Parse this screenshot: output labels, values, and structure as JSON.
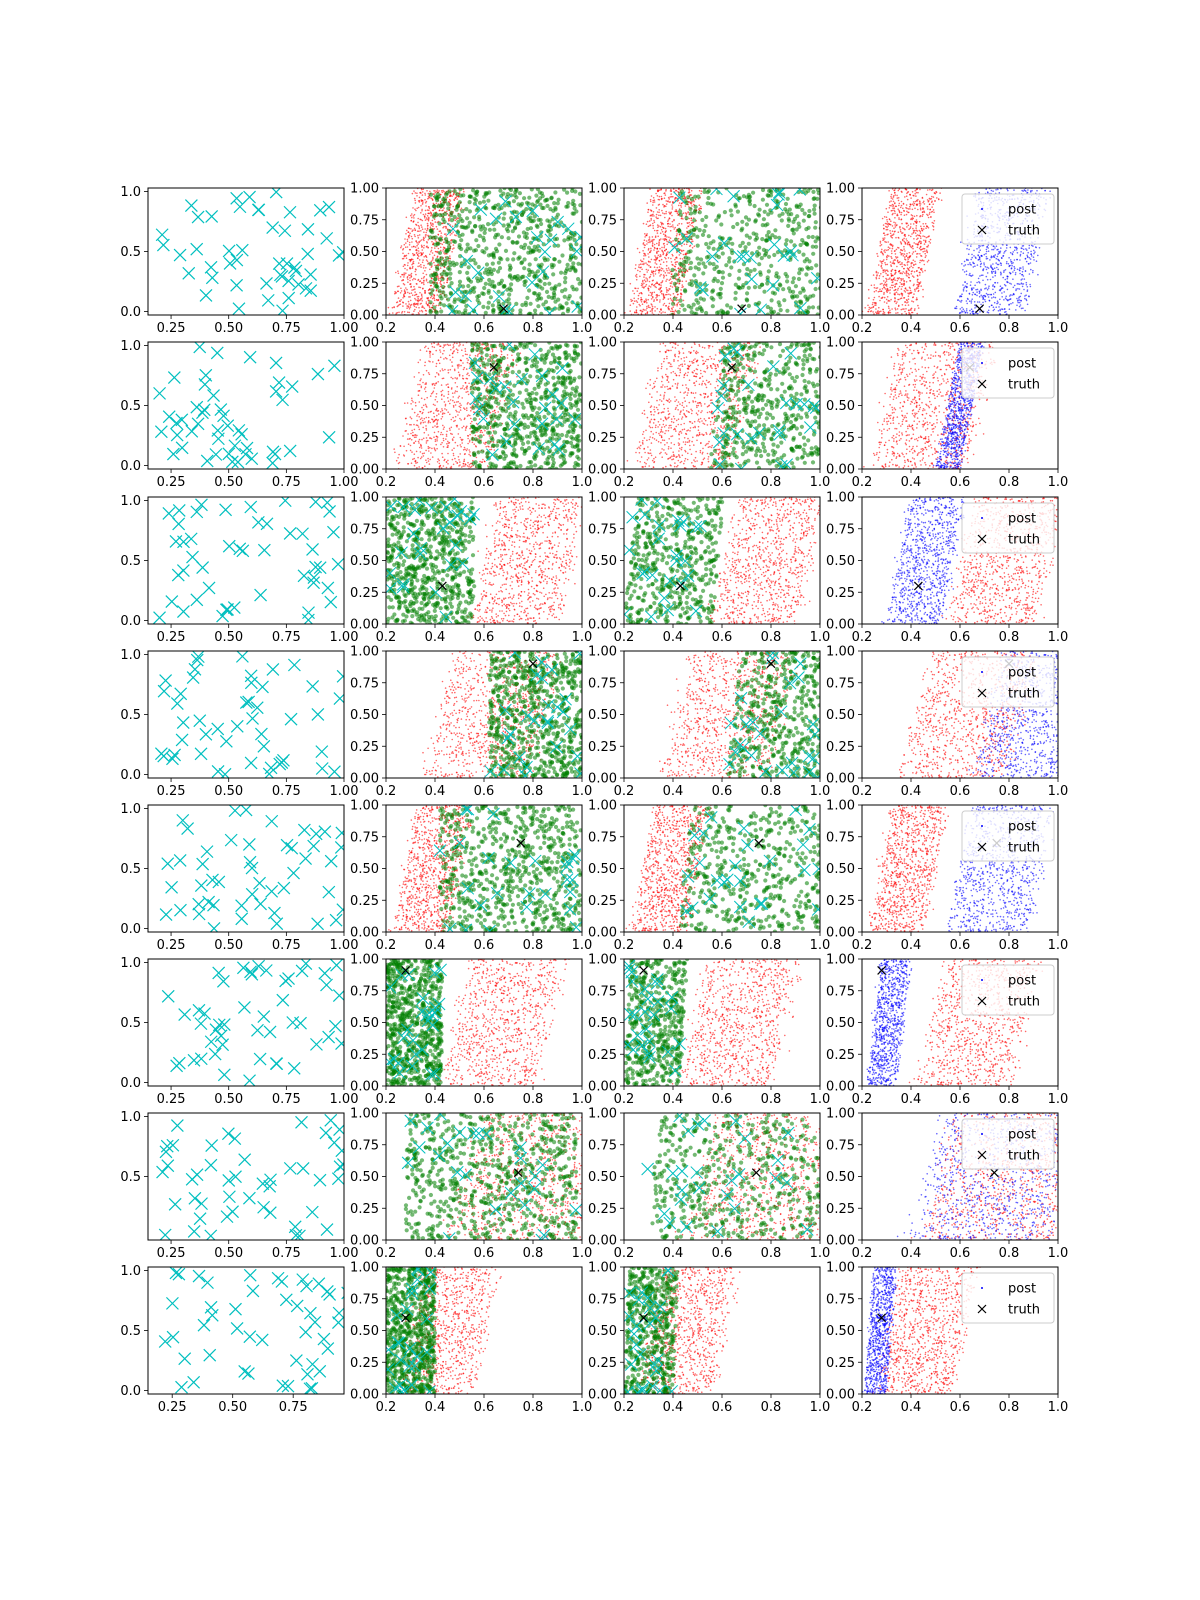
{
  "figure": {
    "rows": 8,
    "cols": 4,
    "colors": {
      "cross": "#00bfbf",
      "prior": "#ff0000",
      "green": "#008000",
      "post": "#0000ff",
      "truth": "#000000"
    }
  },
  "chart_data": {
    "type": "scatter",
    "grid": false,
    "legend_location": "upper right",
    "legend": [
      {
        "name": "post",
        "marker": "dot"
      },
      {
        "name": "truth",
        "marker": "x"
      }
    ],
    "axes": {
      "col0": {
        "xlim": [
          0.15,
          1.0
        ],
        "ylim": [
          -0.03,
          1.03
        ],
        "xticks": [
          "0.25",
          "0.50",
          "0.75",
          "1.00"
        ],
        "yticks": [
          "0.0",
          "0.5",
          "1.0"
        ]
      },
      "col0_row6": {
        "xlim": [
          0.15,
          1.0
        ],
        "ylim": [
          -0.03,
          1.03
        ],
        "xticks": [
          "0.25",
          "0.50",
          "0.75",
          "1.00"
        ],
        "yticks": [
          "0.5",
          "1.0"
        ]
      },
      "col0_row7": {
        "xlim": [
          0.15,
          0.96
        ],
        "ylim": [
          -0.03,
          1.03
        ],
        "xticks": [
          "0.25",
          "0.50",
          "0.75"
        ],
        "yticks": [
          "0.0",
          "0.5",
          "1.0"
        ]
      },
      "cols1to3": {
        "xlim": [
          0.2,
          1.0
        ],
        "ylim": [
          0.0,
          1.0
        ],
        "xticks": [
          "0.2",
          "0.4",
          "0.6",
          "0.8",
          "1.0"
        ],
        "yticks": [
          "0.00",
          "0.25",
          "0.50",
          "0.75",
          "1.00"
        ]
      }
    },
    "truth": [
      [
        0.68,
        0.05
      ],
      [
        0.64,
        0.8
      ],
      [
        0.43,
        0.3
      ],
      [
        0.8,
        0.9
      ],
      [
        0.75,
        0.7
      ],
      [
        0.28,
        0.91
      ],
      [
        0.74,
        0.53
      ],
      [
        0.28,
        0.6
      ]
    ],
    "rows": [
      {
        "red": {
          "x0": 0.22,
          "x1": 0.42,
          "slope": 0.1
        },
        "blue": {
          "x0": 0.58,
          "x1": 0.86,
          "slope": 0.1
        },
        "green_band": [
          0.38,
          1.0
        ],
        "post_truth_cols": [
          false,
          true,
          true
        ]
      },
      {
        "red": {
          "x0": 0.24,
          "x1": 0.62,
          "slope": 0.12
        },
        "blue": {
          "x0": 0.5,
          "x1": 0.6,
          "slope": 0.1
        },
        "green_band": [
          0.55,
          1.0
        ]
      },
      {
        "red": {
          "x0": 0.55,
          "x1": 0.9,
          "slope": 0.12
        },
        "blue": {
          "x0": 0.3,
          "x1": 0.52,
          "slope": 0.1
        },
        "green_band": [
          0.2,
          0.56
        ]
      },
      {
        "red": {
          "x0": 0.35,
          "x1": 0.78,
          "slope": 0.14
        },
        "blue": {
          "x0": 0.66,
          "x1": 1.0,
          "slope": 0.12
        },
        "green_band": [
          0.62,
          1.0
        ]
      },
      {
        "red": {
          "x0": 0.23,
          "x1": 0.45,
          "slope": 0.1
        },
        "blue": {
          "x0": 0.55,
          "x1": 0.88,
          "slope": 0.1
        },
        "green_band": [
          0.42,
          1.0
        ]
      },
      {
        "red": {
          "x0": 0.43,
          "x1": 0.8,
          "slope": 0.12
        },
        "blue": {
          "x0": 0.22,
          "x1": 0.34,
          "slope": 0.06
        },
        "green_band": [
          0.2,
          0.43
        ]
      },
      {
        "red": {
          "x0": 0.45,
          "x1": 1.0,
          "slope": 0.14
        },
        "blue": {
          "x0": 0.4,
          "x1": 0.95,
          "slope": 0.14
        },
        "green_band": [
          0.28,
          0.98
        ]
      },
      {
        "red": {
          "x0": 0.26,
          "x1": 0.56,
          "slope": 0.1
        },
        "blue": {
          "x0": 0.21,
          "x1": 0.3,
          "slope": 0.04
        },
        "green_band": [
          0.2,
          0.4
        ]
      }
    ]
  }
}
